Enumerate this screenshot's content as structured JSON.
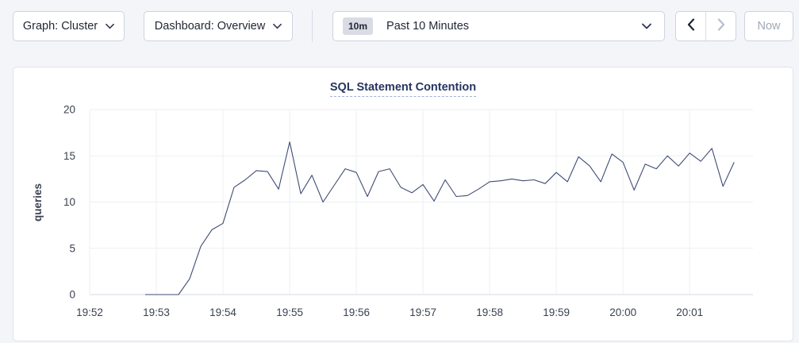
{
  "toolbar": {
    "graph_dropdown": "Graph: Cluster",
    "dashboard_dropdown": "Dashboard: Overview",
    "time_badge": "10m",
    "time_label": "Past 10 Minutes",
    "now_label": "Now",
    "back_enabled": true,
    "forward_enabled": false,
    "now_enabled": false,
    "icons": {
      "dropdown": "chevron-down",
      "back": "chevron-left",
      "forward": "chevron-right"
    }
  },
  "colors": {
    "page_background": "#f4f5f9",
    "card_background": "#ffffff",
    "title": "#263560",
    "line": "#3e4b74",
    "grid": "#edeff3",
    "zero_line": "#d7dae1",
    "disabled_text": "#a0a8b8"
  },
  "chart_data": {
    "type": "line",
    "title": "SQL Statement Contention",
    "xlabel": "",
    "ylabel": "queries",
    "ylim": [
      0,
      20
    ],
    "yticks": [
      0,
      5,
      10,
      15,
      20
    ],
    "x_tick_labels": [
      "19:52",
      "19:53",
      "19:54",
      "19:55",
      "19:56",
      "19:57",
      "19:58",
      "19:59",
      "20:00",
      "20:01"
    ],
    "x_tick_positions_min": [
      0,
      1,
      2,
      3,
      4,
      5,
      6,
      7,
      8,
      9
    ],
    "xlim_min": [
      0,
      9.95
    ],
    "grid": true,
    "legend": "none",
    "series": [
      {
        "name": "SQL Statement Contention",
        "color": "#3e4b74",
        "start_time": "19:52:50",
        "interval_seconds": 10,
        "start_offset_min": 0.8333,
        "interval_min": 0.16667,
        "values": [
          0,
          0,
          0,
          0,
          1.7,
          5.2,
          7.0,
          7.7,
          11.6,
          12.4,
          13.4,
          13.3,
          11.4,
          16.5,
          10.9,
          12.9,
          10.0,
          11.8,
          13.6,
          13.2,
          10.6,
          13.3,
          13.6,
          11.6,
          11.0,
          11.9,
          10.1,
          12.4,
          10.6,
          10.7,
          11.4,
          12.2,
          12.3,
          12.5,
          12.3,
          12.4,
          12.0,
          13.2,
          12.2,
          14.9,
          13.9,
          12.2,
          15.2,
          14.3,
          11.3,
          14.1,
          13.6,
          15.0,
          13.9,
          15.3,
          14.4,
          15.8,
          11.7,
          14.3
        ]
      }
    ]
  }
}
